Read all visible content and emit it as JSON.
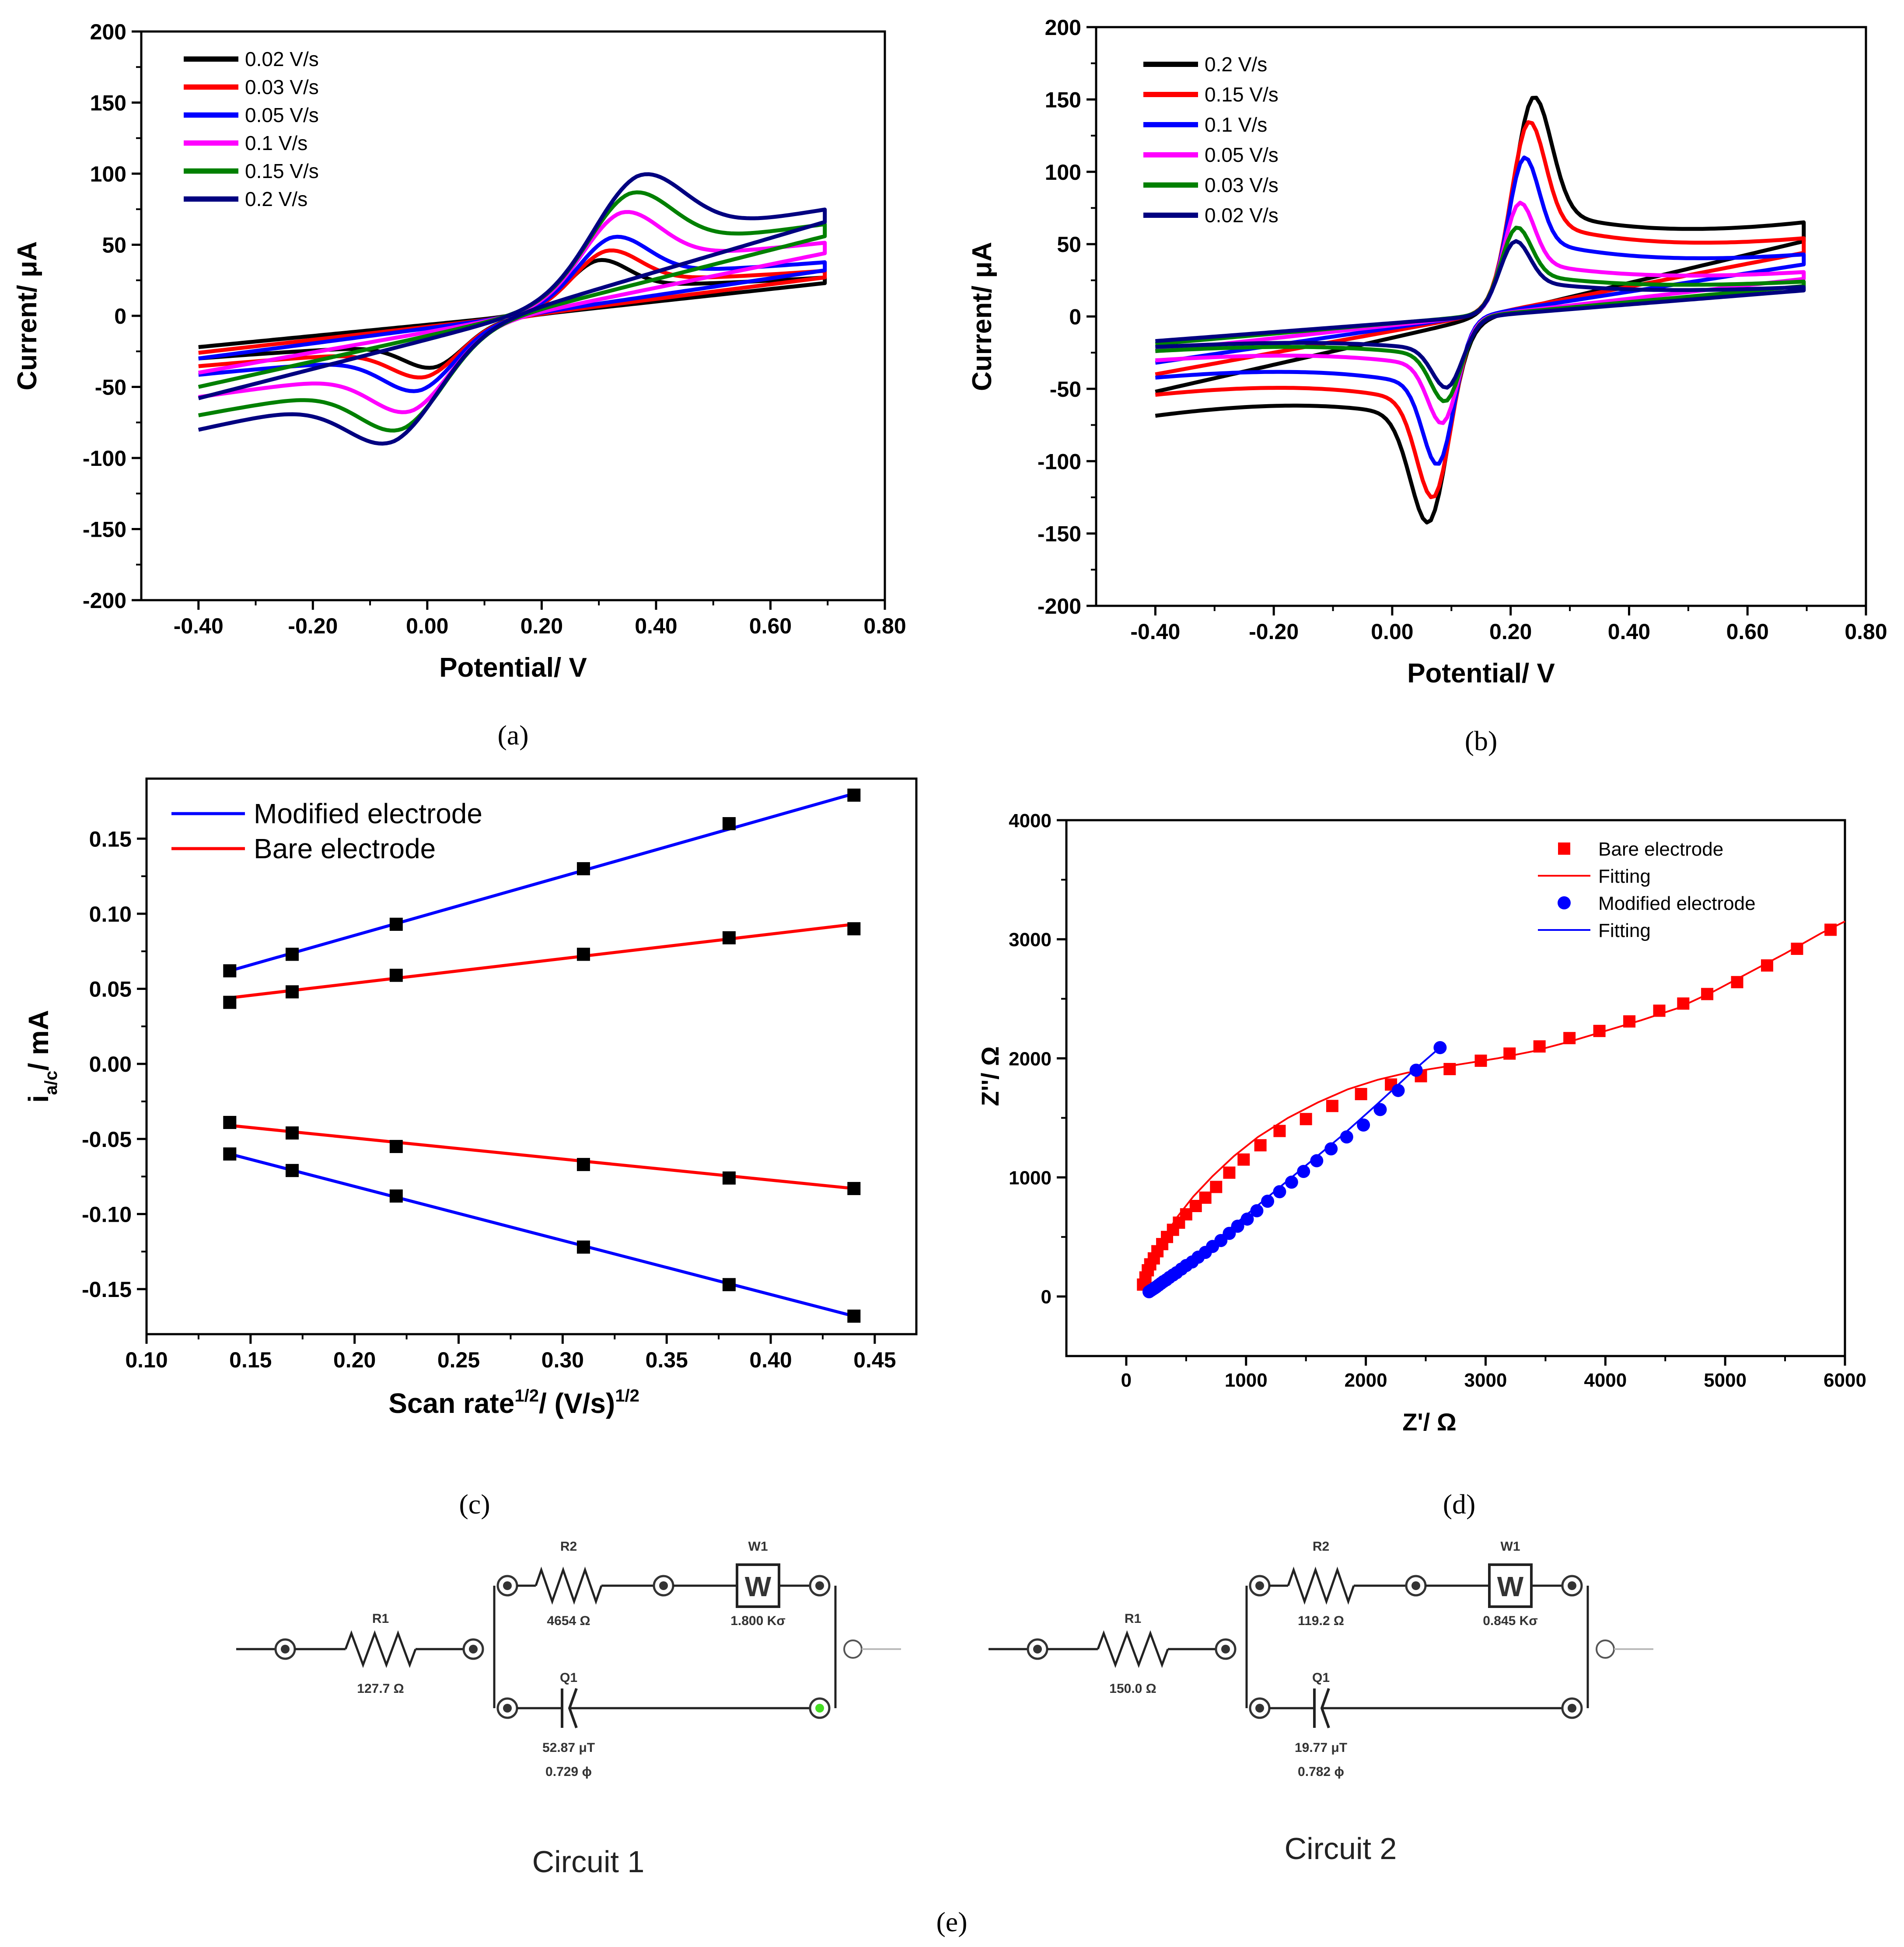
{
  "chart_data": [
    {
      "id": "a",
      "type": "line",
      "panel_label": "(a)",
      "xlabel": "Potential/ V",
      "ylabel": "Current/ μA",
      "xlim": [
        -0.5,
        0.8
      ],
      "ylim": [
        -200,
        200
      ],
      "xticks": [
        -0.4,
        -0.2,
        0.0,
        0.2,
        0.4,
        0.6,
        0.8
      ],
      "xtick_labels": [
        "-0.40",
        "-0.20",
        "0.00",
        "0.20",
        "0.40",
        "0.60",
        "0.80"
      ],
      "yticks": [
        -200,
        -150,
        -100,
        -50,
        0,
        50,
        100,
        150,
        200
      ],
      "ytick_labels": [
        "-200",
        "-150",
        "-100",
        "-50",
        "0",
        "50",
        "100",
        "150",
        "200"
      ],
      "legend_position": "top-left",
      "series": [
        {
          "name": "0.02 V/s",
          "color": "#000000",
          "E0": 0.155,
          "sep": 0.28,
          "ipa": 41,
          "ipc": -38,
          "L": -22,
          "R": 21,
          "Lr": -25,
          "Rr": 23
        },
        {
          "name": "0.03 V/s",
          "color": "#ff0000",
          "E0": 0.155,
          "sep": 0.31,
          "ipa": 48,
          "ipc": -45,
          "L": -26,
          "R": 24,
          "Lr": -29,
          "Rr": 27
        },
        {
          "name": "0.05 V/s",
          "color": "#0000ff",
          "E0": 0.155,
          "sep": 0.33,
          "ipa": 58,
          "ipc": -55,
          "L": -30,
          "R": 28,
          "Lr": -33,
          "Rr": 32
        },
        {
          "name": "0.1 V/s",
          "color": "#ff00ff",
          "E0": 0.155,
          "sep": 0.36,
          "ipa": 76,
          "ipc": -70,
          "L": -40,
          "R": 38,
          "Lr": -46,
          "Rr": 44
        },
        {
          "name": "0.15 V/s",
          "color": "#008000",
          "E0": 0.155,
          "sep": 0.39,
          "ipa": 90,
          "ipc": -83,
          "L": -50,
          "R": 48,
          "Lr": -56,
          "Rr": 56
        },
        {
          "name": "0.2 V/s",
          "color": "#000080",
          "E0": 0.155,
          "sep": 0.42,
          "ipa": 103,
          "ipc": -92,
          "L": -58,
          "R": 55,
          "Lr": -64,
          "Rr": 66
        }
      ]
    },
    {
      "id": "b",
      "type": "line",
      "panel_label": "(b)",
      "xlabel": "Potential/ V",
      "ylabel": "Current/ μA",
      "xlim": [
        -0.5,
        0.8
      ],
      "ylim": [
        -200,
        200
      ],
      "xticks": [
        -0.4,
        -0.2,
        0.0,
        0.2,
        0.4,
        0.6,
        0.8
      ],
      "xtick_labels": [
        "-0.40",
        "-0.20",
        "0.00",
        "0.20",
        "0.40",
        "0.60",
        "0.80"
      ],
      "yticks": [
        -200,
        -150,
        -100,
        -50,
        0,
        50,
        100,
        150,
        200
      ],
      "ytick_labels": [
        "-200",
        "-150",
        "-100",
        "-50",
        "0",
        "50",
        "100",
        "150",
        "200"
      ],
      "legend_position": "top-left",
      "series": [
        {
          "name": "0.2 V/s",
          "color": "#000000",
          "E0": 0.15,
          "sep": 0.17,
          "ipa": 160,
          "ipc": -150,
          "L": -52,
          "R": 50,
          "Lr": -55,
          "Rr": 52
        },
        {
          "name": "0.15 V/s",
          "color": "#ff0000",
          "E0": 0.15,
          "sep": 0.155,
          "ipa": 142,
          "ipc": -132,
          "L": -40,
          "R": 42,
          "Lr": -43,
          "Rr": 44
        },
        {
          "name": "0.1 V/s",
          "color": "#0000ff",
          "E0": 0.15,
          "sep": 0.14,
          "ipa": 116,
          "ipc": -108,
          "L": -32,
          "R": 34,
          "Lr": -34,
          "Rr": 36
        },
        {
          "name": "0.05 V/s",
          "color": "#ff00ff",
          "E0": 0.15,
          "sep": 0.125,
          "ipa": 83,
          "ipc": -78,
          "L": -24,
          "R": 25,
          "Lr": -25,
          "Rr": 26
        },
        {
          "name": "0.03 V/s",
          "color": "#008000",
          "E0": 0.15,
          "sep": 0.115,
          "ipa": 65,
          "ipc": -62,
          "L": -19,
          "R": 20,
          "Lr": -20,
          "Rr": 21
        },
        {
          "name": "0.02 V/s",
          "color": "#000080",
          "E0": 0.15,
          "sep": 0.11,
          "ipa": 55,
          "ipc": -52,
          "L": -17,
          "R": 17,
          "Lr": -18,
          "Rr": 18
        }
      ]
    },
    {
      "id": "c",
      "type": "scatter",
      "panel_label": "(c)",
      "xlabel_main": "Scan rate",
      "xlabel_sup1": "1/2",
      "xlabel_mid": "/ (V/s)",
      "xlabel_sup2": "1/2",
      "ylabel_main": "i",
      "ylabel_sub": "a/c",
      "ylabel_rest": "/ mA",
      "xlim": [
        0.1,
        0.47
      ],
      "ylim": [
        -0.18,
        0.19
      ],
      "xticks": [
        0.1,
        0.15,
        0.2,
        0.25,
        0.3,
        0.35,
        0.4,
        0.45
      ],
      "xtick_labels": [
        "0.10",
        "0.15",
        "0.20",
        "0.25",
        "0.30",
        "0.35",
        "0.40",
        "0.45"
      ],
      "yticks": [
        -0.15,
        -0.1,
        -0.05,
        0.0,
        0.05,
        0.1,
        0.15
      ],
      "ytick_labels": [
        "-0.15",
        "-0.10",
        "-0.05",
        "0.00",
        "0.05",
        "0.10",
        "0.15"
      ],
      "x": [
        0.14,
        0.17,
        0.22,
        0.31,
        0.38,
        0.44
      ],
      "legend_position": "top-left",
      "series": [
        {
          "name": "Modified electrode",
          "color": "#0000ff",
          "group": "anodic",
          "values": [
            0.062,
            0.073,
            0.093,
            0.13,
            0.16,
            0.179
          ],
          "fit": [
            0.14,
            0.062,
            0.44,
            0.18
          ]
        },
        {
          "name": "Bare electrode",
          "color": "#ff0000",
          "group": "anodic",
          "values": [
            0.041,
            0.048,
            0.059,
            0.073,
            0.084,
            0.09
          ],
          "fit": [
            0.14,
            0.044,
            0.44,
            0.093
          ]
        },
        {
          "name": "Bare electrode",
          "color": "#ff0000",
          "group": "cathodic",
          "values": [
            -0.039,
            -0.046,
            -0.055,
            -0.067,
            -0.076,
            -0.083
          ],
          "fit": [
            0.14,
            -0.041,
            0.44,
            -0.083
          ]
        },
        {
          "name": "Modified electrode",
          "color": "#0000ff",
          "group": "cathodic",
          "values": [
            -0.06,
            -0.071,
            -0.088,
            -0.122,
            -0.147,
            -0.168
          ],
          "fit": [
            0.14,
            -0.06,
            0.44,
            -0.168
          ]
        }
      ]
    },
    {
      "id": "d",
      "type": "scatter",
      "panel_label": "(d)",
      "xlabel": "Z'/ Ω",
      "ylabel": "Z''/ Ω",
      "xlim": [
        -500,
        6000
      ],
      "ylim": [
        -500,
        4000
      ],
      "xticks": [
        0,
        1000,
        2000,
        3000,
        4000,
        5000,
        6000
      ],
      "xtick_labels": [
        "0",
        "1000",
        "2000",
        "3000",
        "4000",
        "5000",
        "6000"
      ],
      "yticks": [
        0,
        1000,
        2000,
        3000,
        4000
      ],
      "ytick_labels": [
        "0",
        "1000",
        "2000",
        "3000",
        "4000"
      ],
      "legend_position": "top-right",
      "legend": [
        {
          "label": "Bare electrode",
          "kind": "square",
          "color": "#ff0000"
        },
        {
          "label": "Fitting",
          "kind": "line",
          "color": "#ff0000"
        },
        {
          "label": " Modified electrode",
          "kind": "circle",
          "color": "#0000ff"
        },
        {
          "label": "Fitting",
          "kind": "line",
          "color": "#0000ff"
        }
      ],
      "series": [
        {
          "name": "Bare electrode",
          "color": "#ff0000",
          "marker": "square",
          "x": [
            140,
            160,
            180,
            200,
            230,
            260,
            300,
            340,
            390,
            440,
            500,
            580,
            660,
            750,
            860,
            980,
            1120,
            1280,
            1500,
            1720,
            1960,
            2210,
            2460,
            2700,
            2960,
            3200,
            3450,
            3700,
            3950,
            4200,
            4450,
            4650,
            4850,
            5100,
            5350,
            5600,
            5880
          ],
          "y": [
            100,
            160,
            220,
            270,
            320,
            380,
            440,
            500,
            560,
            620,
            690,
            760,
            830,
            920,
            1040,
            1150,
            1270,
            1390,
            1490,
            1600,
            1700,
            1780,
            1850,
            1910,
            1980,
            2040,
            2100,
            2170,
            2230,
            2310,
            2400,
            2460,
            2540,
            2640,
            2780,
            2920,
            3080
          ]
        },
        {
          "name": "Bare Fitting",
          "color": "#ff0000",
          "marker": "line",
          "x": [
            140,
            200,
            300,
            420,
            560,
            720,
            900,
            1100,
            1350,
            1600,
            1850,
            2100,
            2350,
            2600,
            2850,
            3100,
            3400,
            3700,
            4000,
            4300,
            4600,
            4900,
            5200,
            5500,
            5800,
            6000
          ],
          "y": [
            90,
            260,
            470,
            660,
            840,
            1010,
            1180,
            1340,
            1500,
            1630,
            1740,
            1820,
            1880,
            1920,
            1960,
            2000,
            2060,
            2140,
            2230,
            2320,
            2420,
            2560,
            2720,
            2880,
            3050,
            3150
          ]
        },
        {
          "name": "Modified electrode",
          "color": "#0000ff",
          "marker": "circle",
          "x": [
            190,
            205,
            220,
            235,
            250,
            270,
            290,
            310,
            335,
            360,
            390,
            420,
            460,
            500,
            550,
            600,
            660,
            720,
            790,
            860,
            930,
            1010,
            1090,
            1180,
            1280,
            1380,
            1480,
            1590,
            1710,
            1840,
            1980,
            2120,
            2270,
            2420,
            2620
          ],
          "y": [
            40,
            50,
            60,
            70,
            80,
            95,
            110,
            125,
            140,
            160,
            180,
            200,
            230,
            260,
            290,
            330,
            370,
            420,
            470,
            530,
            590,
            650,
            720,
            800,
            880,
            960,
            1050,
            1140,
            1240,
            1340,
            1440,
            1570,
            1730,
            1900,
            2090
          ]
        },
        {
          "name": "Modified Fitting",
          "color": "#0000ff",
          "marker": "line",
          "x": [
            190,
            300,
            450,
            650,
            900,
            1200,
            1500,
            1800,
            2100,
            2400,
            2630
          ],
          "y": [
            30,
            110,
            220,
            380,
            600,
            850,
            1100,
            1350,
            1620,
            1900,
            2100
          ]
        }
      ]
    }
  ],
  "circuits": {
    "panel_label": "(e)",
    "items": [
      {
        "title": "Circuit 1",
        "r1_label": "R1",
        "r1_value": "127.7  Ω",
        "r2_label": "R2",
        "r2_value": "4654  Ω",
        "w_label": "W1",
        "w_value": "1.800 Kσ",
        "w_symbol": "W",
        "q_label": "Q1",
        "q_value1": "52.87 μT",
        "q_value2": "0.729  ϕ"
      },
      {
        "title": "Circuit 2",
        "r1_label": "R1",
        "r1_value": "150.0  Ω",
        "r2_label": "R2",
        "r2_value": "119.2  Ω",
        "w_label": "W1",
        "w_value": "0.845 Kσ",
        "w_symbol": "W",
        "q_label": "Q1",
        "q_value1": "19.77 μT",
        "q_value2": "0.782  ϕ"
      }
    ]
  }
}
